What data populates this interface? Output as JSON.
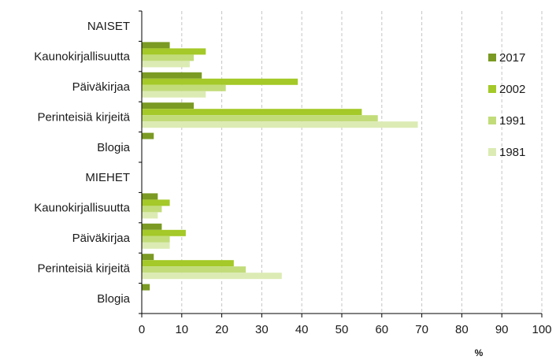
{
  "chart_data": {
    "type": "bar",
    "orientation": "horizontal",
    "xlabel": "%",
    "xlim": [
      0,
      100
    ],
    "xticks": [
      0,
      10,
      20,
      30,
      40,
      50,
      60,
      70,
      80,
      90,
      100
    ],
    "grid": "vertical dashed",
    "legend_position": "right",
    "rows": [
      {
        "label": "NAISET",
        "is_group_header": true
      },
      {
        "label": "Kaunokirjallisuutta",
        "values": [
          7,
          16,
          13,
          12
        ]
      },
      {
        "label": "Päiväkirjaa",
        "values": [
          15,
          39,
          21,
          16
        ]
      },
      {
        "label": "Perinteisiä kirjeitä",
        "values": [
          13,
          55,
          59,
          69
        ]
      },
      {
        "label": "Blogia",
        "values": [
          3,
          null,
          null,
          null
        ]
      },
      {
        "label": "MIEHET",
        "is_group_header": true
      },
      {
        "label": "Kaunokirjallisuutta",
        "values": [
          4,
          7,
          5,
          4
        ]
      },
      {
        "label": "Päiväkirjaa",
        "values": [
          5,
          11,
          7,
          7
        ]
      },
      {
        "label": "Perinteisiä kirjeitä",
        "values": [
          3,
          23,
          26,
          35
        ]
      },
      {
        "label": "Blogia",
        "values": [
          2,
          null,
          null,
          null
        ]
      }
    ],
    "series": [
      {
        "name": "2017",
        "color": "#7a9a23"
      },
      {
        "name": "2002",
        "color": "#a4c928"
      },
      {
        "name": "1991",
        "color": "#c2dc7a"
      },
      {
        "name": "1981",
        "color": "#dcebb4"
      }
    ]
  }
}
